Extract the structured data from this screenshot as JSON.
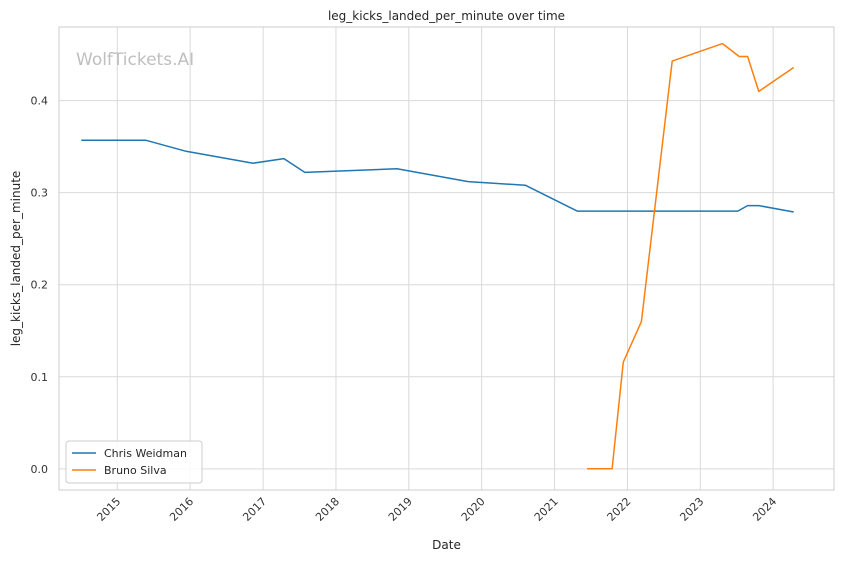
{
  "chart_data": {
    "type": "line",
    "title": "leg_kicks_landed_per_minute over time",
    "xlabel": "Date",
    "ylabel": "leg_kicks_landed_per_minute",
    "watermark": "WolfTickets.AI",
    "x_type": "date",
    "xlim": [
      "2014-03-15",
      "2024-11-01"
    ],
    "ylim": [
      -0.023,
      0.48
    ],
    "x_ticks": [
      {
        "date": "2015-01-01",
        "label": "2015"
      },
      {
        "date": "2016-01-01",
        "label": "2016"
      },
      {
        "date": "2017-01-01",
        "label": "2017"
      },
      {
        "date": "2018-01-01",
        "label": "2018"
      },
      {
        "date": "2019-01-01",
        "label": "2019"
      },
      {
        "date": "2020-01-01",
        "label": "2020"
      },
      {
        "date": "2021-01-01",
        "label": "2021"
      },
      {
        "date": "2022-01-01",
        "label": "2022"
      },
      {
        "date": "2023-01-01",
        "label": "2023"
      },
      {
        "date": "2024-01-01",
        "label": "2024"
      }
    ],
    "y_ticks": [
      {
        "value": 0.0,
        "label": "0.0"
      },
      {
        "value": 0.1,
        "label": "0.1"
      },
      {
        "value": 0.2,
        "label": "0.2"
      },
      {
        "value": 0.3,
        "label": "0.3"
      },
      {
        "value": 0.4,
        "label": "0.4"
      }
    ],
    "grid": true,
    "legend_position": "lower-left",
    "series": [
      {
        "name": "Chris Weidman",
        "color": "#1f77b4",
        "points": [
          {
            "x": "2014-07-05",
            "y": 0.357
          },
          {
            "x": "2015-05-23",
            "y": 0.357
          },
          {
            "x": "2015-12-12",
            "y": 0.345
          },
          {
            "x": "2016-11-12",
            "y": 0.332
          },
          {
            "x": "2017-04-15",
            "y": 0.337
          },
          {
            "x": "2017-07-29",
            "y": 0.322
          },
          {
            "x": "2018-11-03",
            "y": 0.326
          },
          {
            "x": "2019-10-26",
            "y": 0.312
          },
          {
            "x": "2020-08-08",
            "y": 0.308
          },
          {
            "x": "2021-04-24",
            "y": 0.28
          },
          {
            "x": "2023-07-08",
            "y": 0.28
          },
          {
            "x": "2023-08-26",
            "y": 0.286
          },
          {
            "x": "2023-10-21",
            "y": 0.286
          },
          {
            "x": "2024-04-13",
            "y": 0.279
          }
        ]
      },
      {
        "name": "Bruno Silva",
        "color": "#ff7f0e",
        "points": [
          {
            "x": "2021-06-12",
            "y": 0.0
          },
          {
            "x": "2021-10-16",
            "y": 0.0
          },
          {
            "x": "2021-12-11",
            "y": 0.116
          },
          {
            "x": "2022-03-12",
            "y": 0.16
          },
          {
            "x": "2022-08-13",
            "y": 0.443
          },
          {
            "x": "2023-04-22",
            "y": 0.462
          },
          {
            "x": "2023-07-15",
            "y": 0.448
          },
          {
            "x": "2023-08-26",
            "y": 0.448
          },
          {
            "x": "2023-10-21",
            "y": 0.41
          },
          {
            "x": "2024-04-13",
            "y": 0.436
          }
        ]
      }
    ]
  }
}
